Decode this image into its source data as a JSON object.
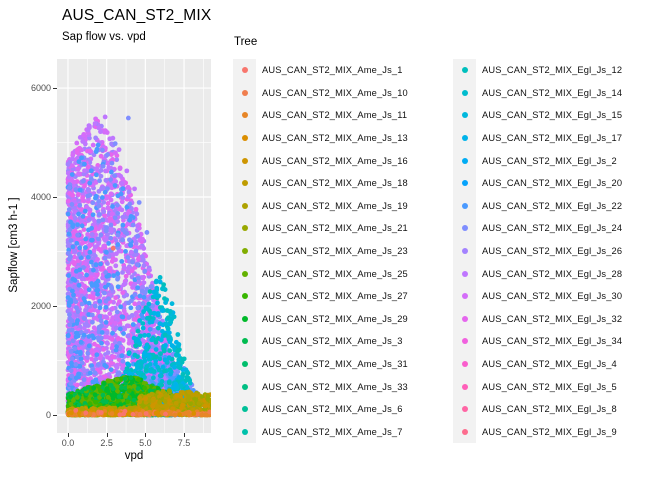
{
  "figure": {
    "title": "AUS_CAN_ST2_MIX",
    "subtitle": "Sap flow vs. vpd",
    "colors": {
      "background": "#FFFFFF",
      "panel_bg": "#EBEBEB",
      "grid": "#FFFFFF",
      "tick_mark": "#333333",
      "tick_label": "#4D4D4D",
      "legend_key_bg": "#F2F2F2",
      "text": "#000000"
    }
  },
  "chart_data": {
    "type": "scatter",
    "title": "AUS_CAN_ST2_MIX",
    "subtitle": "Sap flow vs. vpd",
    "xlabel": "vpd",
    "ylabel": "Sapflow [cm3 h-1 ]",
    "grid": true,
    "x_axis": {
      "range": [
        -0.71,
        9.24
      ],
      "ticks": [
        0,
        2.5,
        5,
        7.5
      ],
      "tick_labels": [
        "0.0",
        "2.5",
        "5.0",
        "7.5"
      ],
      "minor_ticks": [
        1.25,
        3.75,
        6.25,
        8.75
      ]
    },
    "y_axis": {
      "range": [
        -330,
        6533
      ],
      "ticks": [
        0,
        2000,
        4000,
        6000
      ],
      "tick_labels": [
        "0",
        "2000",
        "4000",
        "6000"
      ],
      "minor_ticks": [
        1000,
        3000,
        5000
      ]
    },
    "legend": {
      "title": "Tree",
      "position": "right",
      "columns": 2,
      "rows_per_column": 17
    },
    "series": [
      {
        "name": "AUS_CAN_ST2_MIX_Ame_Js_1",
        "color": "#F8766D"
      },
      {
        "name": "AUS_CAN_ST2_MIX_Ame_Js_10",
        "color": "#F07E4E"
      },
      {
        "name": "AUS_CAN_ST2_MIX_Ame_Js_11",
        "color": "#E78627"
      },
      {
        "name": "AUS_CAN_ST2_MIX_Ame_Js_13",
        "color": "#DB8E00"
      },
      {
        "name": "AUS_CAN_ST2_MIX_Ame_Js_16",
        "color": "#CE9500"
      },
      {
        "name": "AUS_CAN_ST2_MIX_Ame_Js_18",
        "color": "#BF9C00"
      },
      {
        "name": "AUS_CAN_ST2_MIX_Ame_Js_19",
        "color": "#AEA200"
      },
      {
        "name": "AUS_CAN_ST2_MIX_Ame_Js_21",
        "color": "#99A800"
      },
      {
        "name": "AUS_CAN_ST2_MIX_Ame_Js_23",
        "color": "#81AD00"
      },
      {
        "name": "AUS_CAN_ST2_MIX_Ame_Js_25",
        "color": "#63B100"
      },
      {
        "name": "AUS_CAN_ST2_MIX_Ame_Js_27",
        "color": "#38B600"
      },
      {
        "name": "AUS_CAN_ST2_MIX_Ame_Js_29",
        "color": "#00B92A"
      },
      {
        "name": "AUS_CAN_ST2_MIX_Ame_Js_3",
        "color": "#00BB50"
      },
      {
        "name": "AUS_CAN_ST2_MIX_Ame_Js_31",
        "color": "#00BE6C"
      },
      {
        "name": "AUS_CAN_ST2_MIX_Ame_Js_33",
        "color": "#00BF83"
      },
      {
        "name": "AUS_CAN_ST2_MIX_Ame_Js_6",
        "color": "#00C098"
      },
      {
        "name": "AUS_CAN_ST2_MIX_Ame_Js_7",
        "color": "#00C1AB"
      },
      {
        "name": "AUS_CAN_ST2_MIX_Egl_Js_12",
        "color": "#00BFBD"
      },
      {
        "name": "AUS_CAN_ST2_MIX_Egl_Js_14",
        "color": "#00BCCE"
      },
      {
        "name": "AUS_CAN_ST2_MIX_Egl_Js_15",
        "color": "#00B8DD"
      },
      {
        "name": "AUS_CAN_ST2_MIX_Egl_Js_17",
        "color": "#00B3EA"
      },
      {
        "name": "AUS_CAN_ST2_MIX_Egl_Js_2",
        "color": "#00ACF4"
      },
      {
        "name": "AUS_CAN_ST2_MIX_Egl_Js_20",
        "color": "#06A3FC"
      },
      {
        "name": "AUS_CAN_ST2_MIX_Egl_Js_22",
        "color": "#4A9AFF"
      },
      {
        "name": "AUS_CAN_ST2_MIX_Egl_Js_24",
        "color": "#7F8EFF"
      },
      {
        "name": "AUS_CAN_ST2_MIX_Egl_Js_26",
        "color": "#A382FF"
      },
      {
        "name": "AUS_CAN_ST2_MIX_Egl_Js_28",
        "color": "#BF76FF"
      },
      {
        "name": "AUS_CAN_ST2_MIX_Egl_Js_30",
        "color": "#D46DF9"
      },
      {
        "name": "AUS_CAN_ST2_MIX_Egl_Js_32",
        "color": "#E566EE"
      },
      {
        "name": "AUS_CAN_ST2_MIX_Egl_Js_34",
        "color": "#F161DF"
      },
      {
        "name": "AUS_CAN_ST2_MIX_Egl_Js_4",
        "color": "#FA5ECD"
      },
      {
        "name": "AUS_CAN_ST2_MIX_Egl_Js_5",
        "color": "#FF5FB9"
      },
      {
        "name": "AUS_CAN_ST2_MIX_Egl_Js_8",
        "color": "#FF65A4"
      },
      {
        "name": "AUS_CAN_ST2_MIX_Egl_Js_9",
        "color": "#FD6C8E"
      }
    ],
    "seed": 20240601,
    "point_radius": 2.4,
    "point_clusters": [
      {
        "name": "violet-cloud",
        "colors": [
          "#BF76FF",
          "#D46DF9",
          "#A382FF",
          "#E566EE"
        ],
        "n": 2400,
        "x": {
          "min": 0,
          "max": 7.2,
          "pow": 1.5
        },
        "ypow": 1.15,
        "env": [
          [
            0,
            4650
          ],
          [
            0.8,
            5150
          ],
          [
            1.8,
            5450
          ],
          [
            2.6,
            5200
          ],
          [
            3.5,
            4650
          ],
          [
            4.3,
            3950
          ],
          [
            5,
            3100
          ],
          [
            5.8,
            2100
          ],
          [
            6.5,
            1250
          ],
          [
            7.2,
            650
          ]
        ]
      },
      {
        "name": "periwinkle-cloud",
        "colors": [
          "#7F8EFF",
          "#4A9AFF"
        ],
        "n": 550,
        "x": {
          "min": 0,
          "max": 7.5,
          "pow": 1.4
        },
        "ypow": 1.25,
        "env": [
          [
            0,
            4300
          ],
          [
            0.8,
            4750
          ],
          [
            1.8,
            5050
          ],
          [
            2.6,
            4800
          ],
          [
            3.5,
            4300
          ],
          [
            4.3,
            3650
          ],
          [
            5,
            2850
          ],
          [
            5.8,
            1950
          ],
          [
            6.5,
            1150
          ],
          [
            7.5,
            550
          ]
        ]
      },
      {
        "name": "periwinkle-lower-right",
        "colors": [
          "#7F8EFF",
          "#4A9AFF"
        ],
        "n": 180,
        "x": {
          "min": 5,
          "max": 8.3,
          "pow": 1.0
        },
        "ypow": 1.6,
        "env": [
          [
            5,
            1100
          ],
          [
            6.5,
            1400
          ],
          [
            8.3,
            500
          ]
        ]
      },
      {
        "name": "cyan-right-flank",
        "colors": [
          "#00B8DD",
          "#00BCCE",
          "#00BFBD",
          "#00B3EA"
        ],
        "n": 420,
        "x": {
          "min": 3.5,
          "max": 7.9,
          "pow": 0.9
        },
        "ypow": 1.05,
        "env": [
          [
            3.5,
            700
          ],
          [
            4.5,
            1700
          ],
          [
            5.5,
            2450
          ],
          [
            6.4,
            2600
          ],
          [
            7.1,
            1500
          ],
          [
            7.9,
            600
          ]
        ]
      },
      {
        "name": "teal-bottom-left",
        "colors": [
          "#00C098",
          "#00C1AB",
          "#00BE6C"
        ],
        "n": 70,
        "x": {
          "min": 0,
          "max": 2.2,
          "pow": 1.2
        },
        "ypow": 1.3,
        "env": [
          [
            0,
            260
          ],
          [
            2.2,
            190
          ]
        ]
      },
      {
        "name": "green-bottom-band",
        "colors": [
          "#00B92A",
          "#38B600",
          "#63B100",
          "#00BB50"
        ],
        "n": 1450,
        "x": {
          "min": 0,
          "max": 6.8,
          "pow": 1.05
        },
        "ypow": 1.25,
        "env": [
          [
            0,
            380
          ],
          [
            1.2,
            500
          ],
          [
            2.6,
            630
          ],
          [
            3.6,
            700
          ],
          [
            4.6,
            670
          ],
          [
            5.6,
            520
          ],
          [
            6.8,
            360
          ]
        ]
      },
      {
        "name": "gold-left-band",
        "colors": [
          "#AEA200",
          "#BF9C00",
          "#CE9500"
        ],
        "n": 240,
        "x": {
          "min": 0,
          "max": 4.6,
          "pow": 1.0
        },
        "ypow": 1.7,
        "env": [
          [
            0,
            120
          ],
          [
            4.6,
            140
          ]
        ]
      },
      {
        "name": "lightblue-bottom-right",
        "colors": [
          "#06A3FC",
          "#00ACF4"
        ],
        "n": 140,
        "x": {
          "min": 5.2,
          "max": 9.1,
          "pow": 1.0
        },
        "ypow": 1.4,
        "env": [
          [
            5.2,
            250
          ],
          [
            7,
            330
          ],
          [
            9.1,
            260
          ]
        ]
      },
      {
        "name": "gold-right-mass",
        "colors": [
          "#AEA200",
          "#BF9C00",
          "#99A800",
          "#CE9500"
        ],
        "n": 470,
        "x": {
          "min": 4.6,
          "max": 9.35,
          "pow": 0.95
        },
        "ypow": 1.5,
        "env": [
          [
            4.6,
            360
          ],
          [
            6,
            460
          ],
          [
            7.6,
            430
          ],
          [
            9.35,
            370
          ]
        ]
      },
      {
        "name": "orange-bottom-band",
        "colors": [
          "#E78627",
          "#DB8E00",
          "#F07E4E"
        ],
        "n": 150,
        "x": {
          "min": 0,
          "max": 9.2,
          "pow": 1.15
        },
        "ypow": 1.4,
        "env": [
          [
            0,
            70
          ],
          [
            9.2,
            60
          ]
        ]
      }
    ],
    "outlier_points": [
      {
        "name": "violet-top-outliers",
        "color": "#BF76FF",
        "points": [
          [
            2.4,
            5470
          ],
          [
            1.3,
            5230
          ],
          [
            1.75,
            5350
          ],
          [
            2.9,
            5080
          ],
          [
            0.95,
            5020
          ],
          [
            2.1,
            5200
          ],
          [
            3.3,
            4870
          ],
          [
            0.3,
            4700
          ],
          [
            3.8,
            4480
          ],
          [
            4.3,
            4150
          ]
        ]
      },
      {
        "name": "periwinkle-top-outliers",
        "color": "#7F8EFF",
        "points": [
          [
            3.9,
            5450
          ],
          [
            3.05,
            4980
          ],
          [
            4.6,
            3900
          ],
          [
            5.1,
            3350
          ]
        ]
      },
      {
        "name": "pink-accent-points",
        "color": "#F8766D",
        "points": [
          [
            2.92,
            3060
          ],
          [
            3.68,
            70
          ],
          [
            3.6,
            20
          ],
          [
            0.5,
            85
          ],
          [
            2.15,
            45
          ],
          [
            5.05,
            28
          ],
          [
            4.2,
            12
          ],
          [
            6.3,
            18
          ],
          [
            1.15,
            40
          ],
          [
            3.35,
            5
          ]
        ]
      }
    ]
  }
}
